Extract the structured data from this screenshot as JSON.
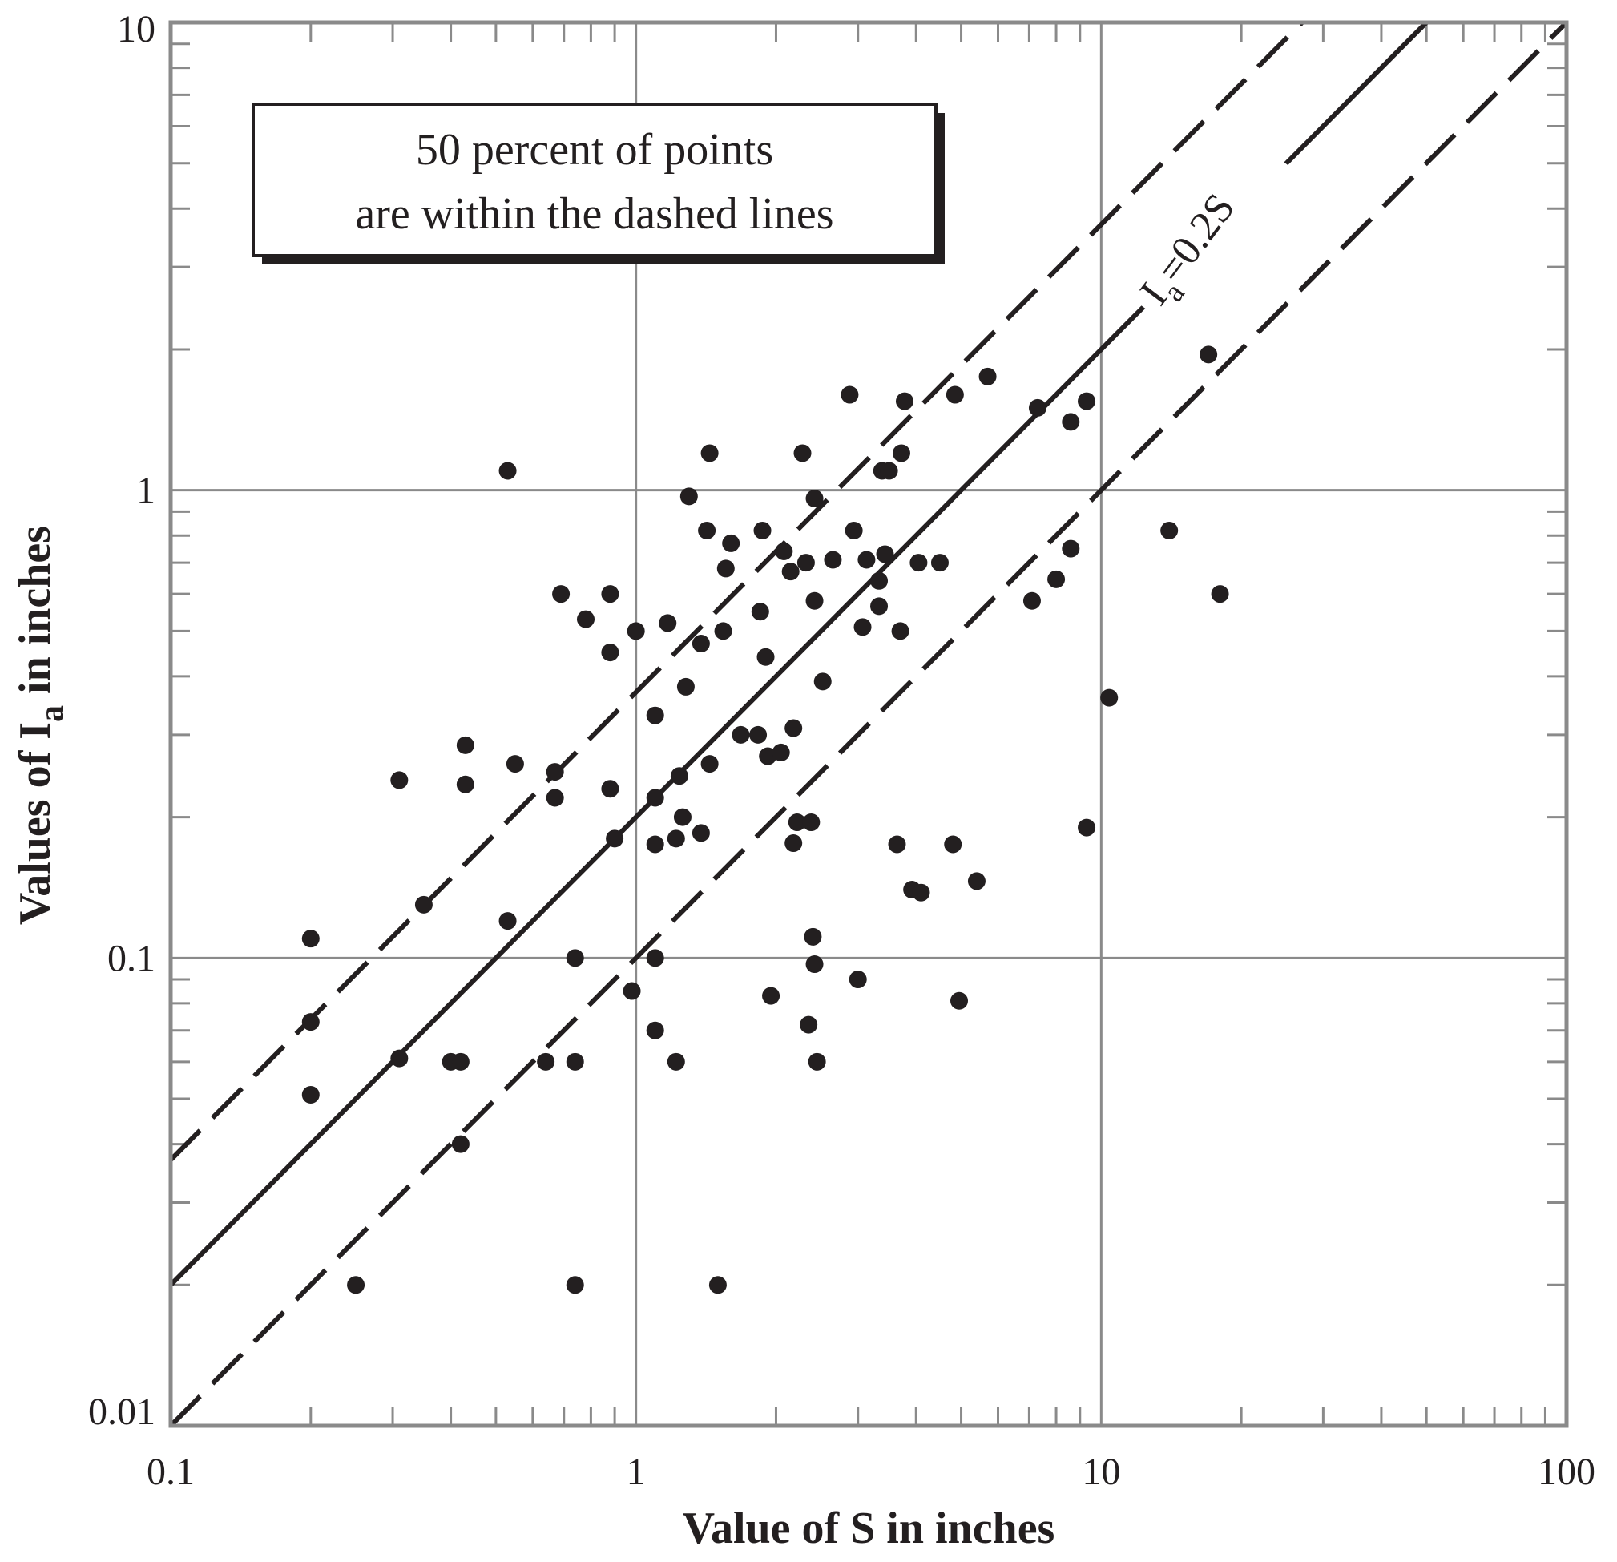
{
  "chart_data": {
    "type": "scatter",
    "xlabel": "Value of S in inches",
    "ylabel_main": "Values of I",
    "ylabel_sub": "a",
    "ylabel_tail": " in inches",
    "xscale": "log",
    "yscale": "log",
    "xlim": [
      0.1,
      100
    ],
    "ylim": [
      0.01,
      10
    ],
    "grid": true,
    "xticks": [
      {
        "value": 0.1,
        "label": "0.1"
      },
      {
        "value": 1,
        "label": "1"
      },
      {
        "value": 10,
        "label": "10"
      },
      {
        "value": 100,
        "label": "100"
      }
    ],
    "yticks": [
      {
        "value": 0.01,
        "label": "0.01"
      },
      {
        "value": 0.1,
        "label": "0.1"
      },
      {
        "value": 1,
        "label": "1"
      },
      {
        "value": 10,
        "label": "10"
      }
    ],
    "annotation_box": {
      "line1": "50 percent of points",
      "line2": "are within the dashed lines"
    },
    "reference_lines": [
      {
        "name": "center",
        "style": "solid",
        "coef": 0.2,
        "label_main": "I",
        "label_sub": "a",
        "label_tail": "=0.2S"
      },
      {
        "name": "upper",
        "style": "dashed",
        "coef": 0.37
      },
      {
        "name": "lower",
        "style": "dashed",
        "coef": 0.1
      }
    ],
    "points": [
      [
        0.2,
        0.11
      ],
      [
        0.2,
        0.073
      ],
      [
        0.2,
        0.051
      ],
      [
        0.25,
        0.02
      ],
      [
        0.31,
        0.24
      ],
      [
        0.31,
        0.061
      ],
      [
        0.35,
        0.13
      ],
      [
        0.4,
        0.06
      ],
      [
        0.42,
        0.06
      ],
      [
        0.42,
        0.04
      ],
      [
        0.43,
        0.285
      ],
      [
        0.43,
        0.235
      ],
      [
        0.53,
        1.1
      ],
      [
        0.53,
        0.12
      ],
      [
        0.55,
        0.26
      ],
      [
        0.64,
        0.06
      ],
      [
        0.67,
        0.25
      ],
      [
        0.67,
        0.22
      ],
      [
        0.69,
        0.6
      ],
      [
        0.74,
        0.1
      ],
      [
        0.74,
        0.06
      ],
      [
        0.74,
        0.02
      ],
      [
        0.78,
        0.53
      ],
      [
        0.88,
        0.6
      ],
      [
        0.88,
        0.45
      ],
      [
        0.88,
        0.23
      ],
      [
        0.9,
        0.18
      ],
      [
        0.98,
        0.085
      ],
      [
        1.0,
        0.5
      ],
      [
        1.1,
        0.33
      ],
      [
        1.1,
        0.22
      ],
      [
        1.1,
        0.175
      ],
      [
        1.1,
        0.1
      ],
      [
        1.1,
        0.07
      ],
      [
        1.17,
        0.52
      ],
      [
        1.22,
        0.18
      ],
      [
        1.22,
        0.06
      ],
      [
        1.24,
        0.245
      ],
      [
        1.26,
        0.2
      ],
      [
        1.28,
        0.38
      ],
      [
        1.3,
        0.97
      ],
      [
        1.38,
        0.47
      ],
      [
        1.38,
        0.185
      ],
      [
        1.42,
        0.82
      ],
      [
        1.44,
        0.26
      ],
      [
        1.44,
        1.2
      ],
      [
        1.5,
        0.02
      ],
      [
        1.54,
        0.5
      ],
      [
        1.56,
        0.68
      ],
      [
        1.6,
        0.77
      ],
      [
        1.68,
        0.3
      ],
      [
        1.83,
        0.3
      ],
      [
        1.85,
        0.55
      ],
      [
        1.87,
        0.82
      ],
      [
        1.9,
        0.44
      ],
      [
        1.92,
        0.27
      ],
      [
        1.95,
        0.083
      ],
      [
        2.05,
        0.275
      ],
      [
        2.08,
        0.74
      ],
      [
        2.15,
        0.67
      ],
      [
        2.18,
        0.31
      ],
      [
        2.18,
        0.176
      ],
      [
        2.22,
        0.195
      ],
      [
        2.28,
        1.2
      ],
      [
        2.32,
        0.7
      ],
      [
        2.35,
        0.072
      ],
      [
        2.38,
        0.195
      ],
      [
        2.4,
        0.111
      ],
      [
        2.42,
        0.58
      ],
      [
        2.42,
        0.96
      ],
      [
        2.42,
        0.097
      ],
      [
        2.45,
        0.06
      ],
      [
        2.52,
        0.39
      ],
      [
        2.65,
        0.71
      ],
      [
        2.88,
        1.6
      ],
      [
        2.94,
        0.82
      ],
      [
        3.0,
        0.09
      ],
      [
        3.07,
        0.51
      ],
      [
        3.13,
        0.71
      ],
      [
        3.33,
        0.565
      ],
      [
        3.33,
        0.64
      ],
      [
        3.38,
        1.1
      ],
      [
        3.43,
        0.73
      ],
      [
        3.5,
        1.1
      ],
      [
        3.64,
        0.175
      ],
      [
        3.7,
        0.5
      ],
      [
        3.72,
        1.2
      ],
      [
        3.78,
        1.55
      ],
      [
        3.92,
        0.14
      ],
      [
        4.05,
        0.7
      ],
      [
        4.1,
        0.138
      ],
      [
        4.5,
        0.7
      ],
      [
        4.8,
        0.175
      ],
      [
        4.85,
        1.6
      ],
      [
        4.95,
        0.081
      ],
      [
        5.4,
        0.146
      ],
      [
        5.7,
        1.75
      ],
      [
        7.1,
        0.58
      ],
      [
        7.3,
        1.5
      ],
      [
        8.0,
        0.645
      ],
      [
        8.6,
        0.75
      ],
      [
        8.6,
        1.4
      ],
      [
        9.3,
        1.55
      ],
      [
        9.3,
        0.19
      ],
      [
        10.4,
        0.36
      ],
      [
        14.0,
        0.82
      ],
      [
        17.0,
        1.95
      ],
      [
        18.0,
        0.6
      ]
    ]
  }
}
